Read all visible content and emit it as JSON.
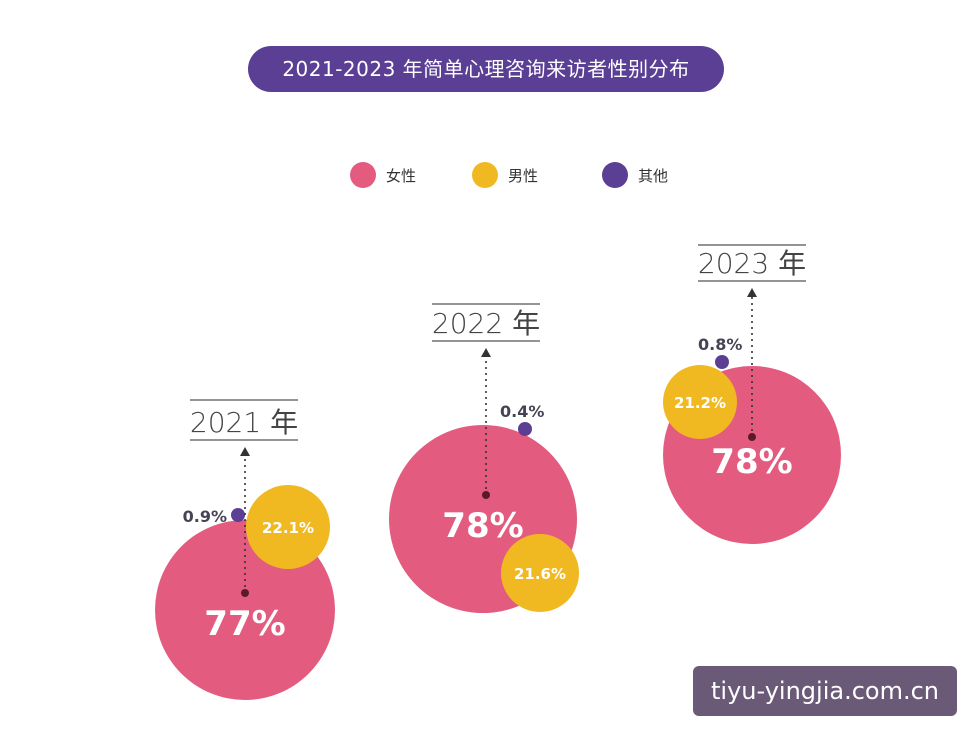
{
  "title": "2021-2023 年简单心理咨询来访者性别分布",
  "legend": [
    {
      "label": "女性",
      "color": "#e35c80"
    },
    {
      "label": "男性",
      "color": "#f1b921"
    },
    {
      "label": "其他",
      "color": "#5b3f94"
    }
  ],
  "watermark": "tiyu-yingjia.com.cn",
  "chart_data": {
    "type": "bubble",
    "title": "2021-2023 年简单心理咨询来访者性别分布",
    "series_names": [
      "女性",
      "男性",
      "其他"
    ],
    "years": [
      {
        "label": "2021 年",
        "female": 77,
        "male": 22.1,
        "other": 0.9,
        "female_label": "77%",
        "male_label": "22.1%",
        "other_label": "0.9%"
      },
      {
        "label": "2022 年",
        "female": 78,
        "male": 21.6,
        "other": 0.4,
        "female_label": "78%",
        "male_label": "21.6%",
        "other_label": "0.4%"
      },
      {
        "label": "2023 年",
        "female": 78,
        "male": 21.2,
        "other": 0.8,
        "female_label": "78%",
        "male_label": "21.2%",
        "other_label": "0.8%"
      }
    ]
  }
}
